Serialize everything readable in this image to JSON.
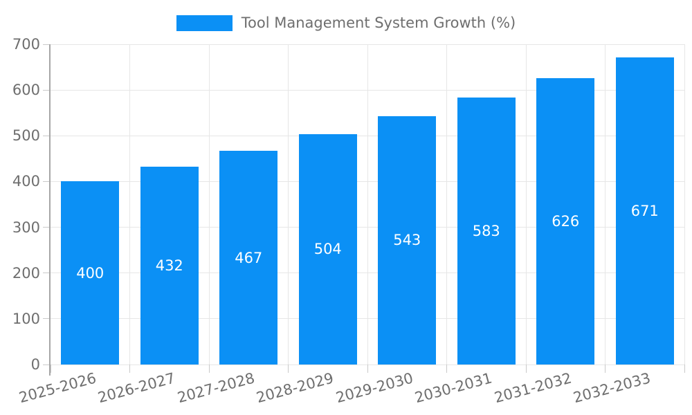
{
  "chart_data": {
    "type": "bar",
    "title": "Tool Management System Growth (%)",
    "categories": [
      "2025-2026",
      "2026-2027",
      "2027-2028",
      "2028-2029",
      "2029-2030",
      "2030-2031",
      "2031-2032",
      "2032-2033"
    ],
    "values": [
      400,
      432,
      467,
      504,
      543,
      583,
      626,
      671
    ],
    "xlabel": "",
    "ylabel": "",
    "ylim": [
      0,
      700
    ],
    "yticks": [
      0,
      100,
      200,
      300,
      400,
      500,
      600,
      700
    ],
    "grid": true,
    "legend_position": "top-center",
    "value_labels": "inside-center-white",
    "x_tick_rotation_deg": -15,
    "colors": {
      "bar": "#0b90f5",
      "grid": "#e6e6e6",
      "axis": "#a6a6a6",
      "tick": "#c9c9c9",
      "text": "#6e6e6e",
      "value_text": "#ffffff",
      "background": "#ffffff"
    }
  },
  "legend": {
    "items": [
      {
        "label": "Tool Management System Growth (%)",
        "swatch_color": "#0b90f5"
      }
    ]
  }
}
